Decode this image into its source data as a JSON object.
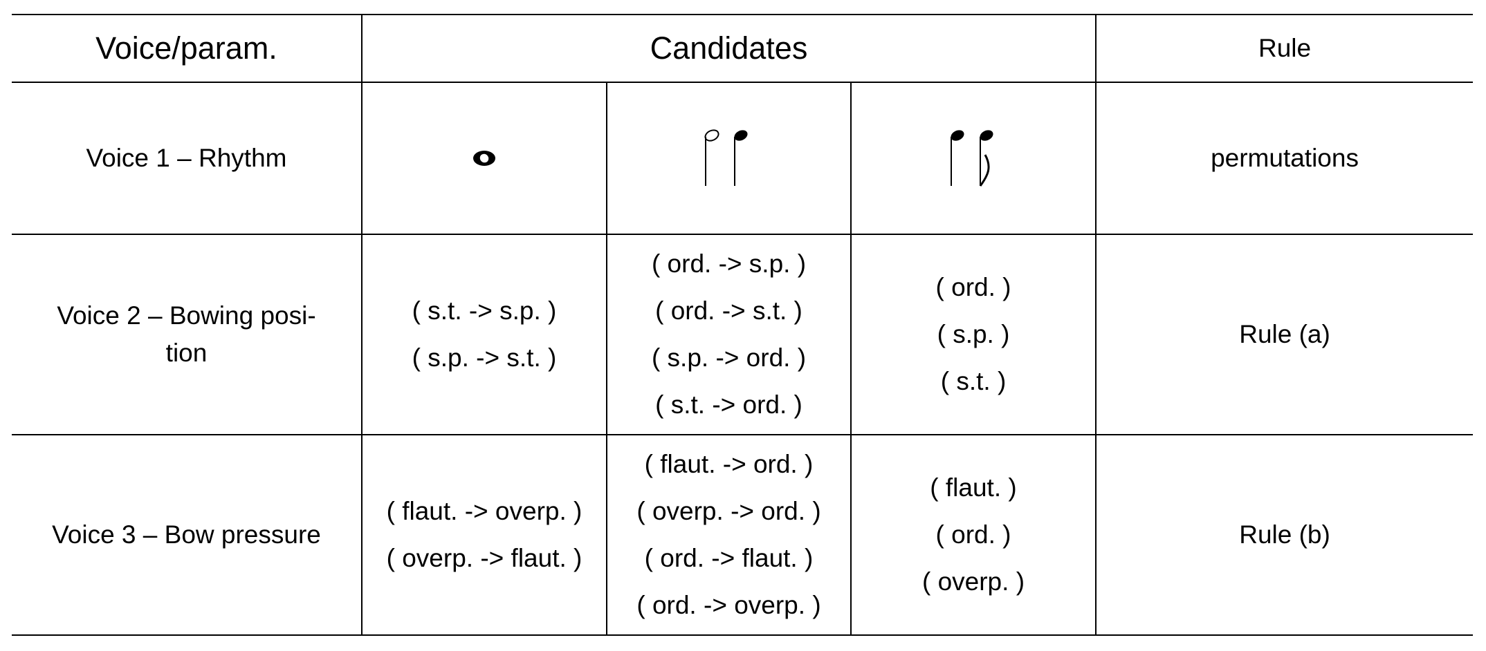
{
  "header": {
    "voice_param": "Voice/param.",
    "candidates": "Candidates",
    "rule": "Rule"
  },
  "rows": [
    {
      "label": "Voice 1 – Rhythm",
      "candidates": [
        {
          "notation": "whole-note"
        },
        {
          "notation": "half-note-quarter-note"
        },
        {
          "notation": "quarter-note-eighth-note"
        }
      ],
      "rule": "permutations"
    },
    {
      "label": "Voice 2 – Bowing posi-\ntion",
      "candidates": [
        [
          "( s.t. -> s.p. )",
          "( s.p. -> s.t. )"
        ],
        [
          "( ord. -> s.p. )",
          "( ord. -> s.t. )",
          "( s.p. -> ord. )",
          "( s.t. -> ord. )"
        ],
        [
          "( ord. )",
          "( s.p. )",
          "( s.t. )"
        ]
      ],
      "rule": "Rule (a)"
    },
    {
      "label": "Voice 3 – Bow pressure",
      "candidates": [
        [
          "( flaut. -> overp. )",
          "( overp. -> flaut. )"
        ],
        [
          "( flaut. -> ord. )",
          "( overp. -> ord. )",
          "( ord. -> flaut. )",
          "( ord. -> overp. )"
        ],
        [
          "( flaut. )",
          "( ord. )",
          "( overp. )"
        ]
      ],
      "rule": "Rule (b)"
    }
  ]
}
